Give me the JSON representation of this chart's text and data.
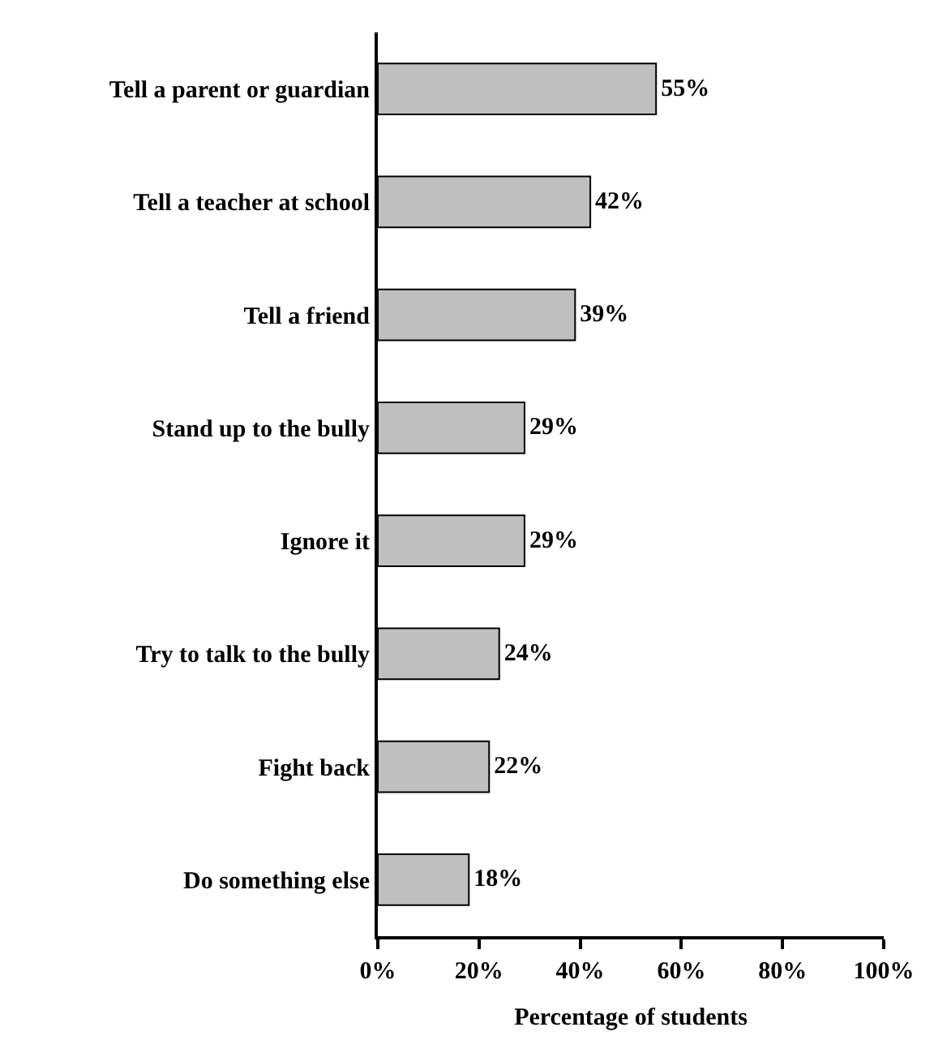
{
  "chart_data": {
    "type": "bar",
    "orientation": "horizontal",
    "xlabel": "Percentage of students",
    "categories": [
      "Tell a parent or guardian",
      "Tell a teacher at school",
      "Tell a friend",
      "Stand up to the bully",
      "Ignore it",
      "Try to talk to the bully",
      "Fight back",
      "Do something else"
    ],
    "values": [
      55,
      42,
      39,
      29,
      29,
      24,
      22,
      18
    ],
    "value_labels": [
      "55%",
      "42%",
      "39%",
      "29%",
      "29%",
      "24%",
      "22%",
      "18%"
    ],
    "color": "#bfbfbf",
    "xlim": [
      0,
      100
    ],
    "xticks": [
      {
        "value": 0,
        "label": "0%"
      },
      {
        "value": 20,
        "label": "20%"
      },
      {
        "value": 40,
        "label": "40%"
      },
      {
        "value": 60,
        "label": "60%"
      },
      {
        "value": 80,
        "label": "80%"
      },
      {
        "value": 100,
        "label": "100%"
      }
    ],
    "legend": false
  }
}
